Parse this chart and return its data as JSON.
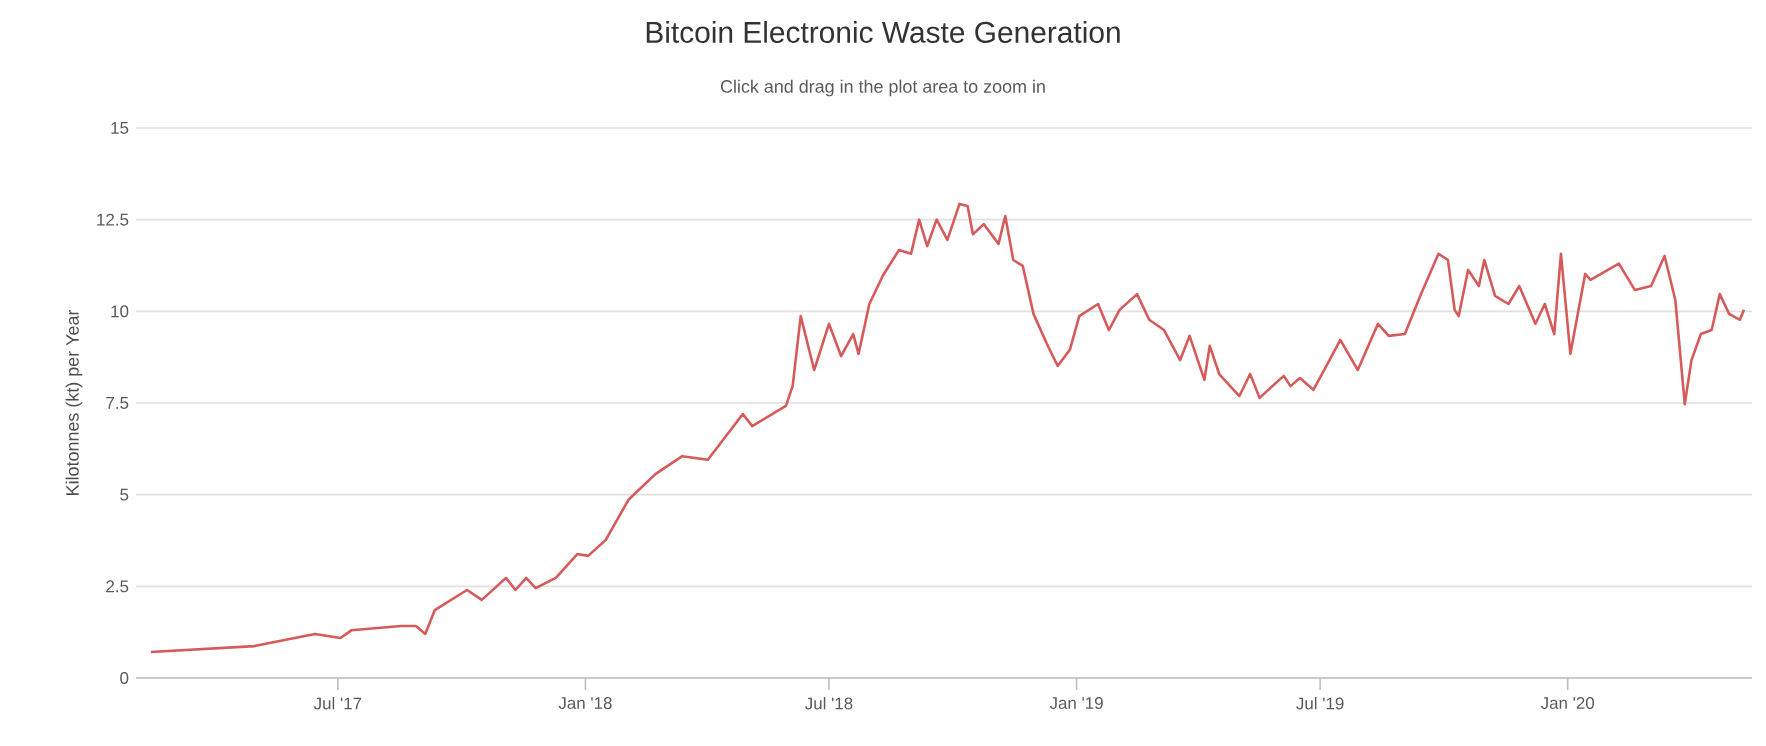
{
  "chart_data": {
    "type": "line",
    "title": "Bitcoin Electronic Waste Generation",
    "subtitle": "Click and drag in the plot area to zoom in",
    "ylabel": "Kilotonnes (kt) per Year",
    "xlim": [
      "2017-02-01",
      "2020-05-17"
    ],
    "xticks": [
      {
        "value": "2017-07-01",
        "label": "Jul '17"
      },
      {
        "value": "2018-01-01",
        "label": "Jan '18"
      },
      {
        "value": "2018-07-01",
        "label": "Jul '18"
      },
      {
        "value": "2019-01-01",
        "label": "Jan '19"
      },
      {
        "value": "2019-07-01",
        "label": "Jul '19"
      },
      {
        "value": "2020-01-01",
        "label": "Jan '20"
      }
    ],
    "ylim": [
      0,
      15
    ],
    "yticks": [
      0,
      2.5,
      5,
      7.5,
      10,
      12.5,
      15
    ],
    "grid": "y",
    "marker": "none",
    "line_style": "solid",
    "series": [
      {
        "color": "#d65a5a",
        "x": [
          "2017-02-12",
          "2017-04-30",
          "2017-06-14",
          "2017-07-03",
          "2017-07-11",
          "2017-08-17",
          "2017-08-28",
          "2017-09-04",
          "2017-09-11",
          "2017-10-05",
          "2017-10-16",
          "2017-11-03",
          "2017-11-10",
          "2017-11-18",
          "2017-11-25",
          "2017-12-10",
          "2017-12-26",
          "2018-01-03",
          "2018-01-16",
          "2018-02-02",
          "2018-02-22",
          "2018-03-14",
          "2018-04-02",
          "2018-04-28",
          "2018-05-05",
          "2018-05-30",
          "2018-06-04",
          "2018-06-10",
          "2018-06-20",
          "2018-07-01",
          "2018-07-10",
          "2018-07-19",
          "2018-07-23",
          "2018-07-31",
          "2018-08-10",
          "2018-08-22",
          "2018-08-31",
          "2018-09-06",
          "2018-09-12",
          "2018-09-19",
          "2018-09-27",
          "2018-10-06",
          "2018-10-12",
          "2018-10-16",
          "2018-10-24",
          "2018-11-04",
          "2018-11-09",
          "2018-11-15",
          "2018-11-22",
          "2018-11-30",
          "2018-12-10",
          "2018-12-18",
          "2018-12-27",
          "2019-01-03",
          "2019-01-17",
          "2019-01-25",
          "2019-02-02",
          "2019-02-15",
          "2019-02-24",
          "2019-03-07",
          "2019-03-19",
          "2019-03-26",
          "2019-04-06",
          "2019-04-10",
          "2019-04-17",
          "2019-05-02",
          "2019-05-10",
          "2019-05-17",
          "2019-06-04",
          "2019-06-09",
          "2019-06-16",
          "2019-06-26",
          "2019-07-08",
          "2019-07-16",
          "2019-07-29",
          "2019-08-13",
          "2019-08-21",
          "2019-09-02",
          "2019-09-14",
          "2019-09-27",
          "2019-10-04",
          "2019-10-09",
          "2019-10-12",
          "2019-10-19",
          "2019-10-27",
          "2019-10-31",
          "2019-11-08",
          "2019-11-18",
          "2019-11-26",
          "2019-12-08",
          "2019-12-15",
          "2019-12-22",
          "2019-12-27",
          "2020-01-03",
          "2020-01-14",
          "2020-01-18",
          "2020-02-08",
          "2020-02-20",
          "2020-03-03",
          "2020-03-13",
          "2020-03-21",
          "2020-03-28",
          "2020-04-02",
          "2020-04-09",
          "2020-04-17",
          "2020-04-23",
          "2020-04-30",
          "2020-05-08",
          "2020-05-11"
        ],
        "values": [
          0.71,
          0.87,
          1.2,
          1.09,
          1.3,
          1.42,
          1.42,
          1.2,
          1.85,
          2.4,
          2.13,
          2.73,
          2.4,
          2.73,
          2.45,
          2.73,
          3.38,
          3.33,
          3.76,
          4.86,
          5.56,
          6.05,
          5.95,
          7.2,
          6.87,
          7.42,
          7.96,
          9.87,
          8.4,
          9.66,
          8.78,
          9.38,
          8.84,
          10.2,
          10.97,
          11.67,
          11.57,
          12.5,
          11.78,
          12.5,
          11.95,
          12.93,
          12.87,
          12.1,
          12.38,
          11.84,
          12.6,
          11.4,
          11.24,
          9.93,
          9.11,
          8.51,
          8.95,
          9.87,
          10.2,
          9.49,
          10.04,
          10.47,
          9.77,
          9.49,
          8.67,
          9.33,
          8.13,
          9.06,
          8.29,
          7.69,
          8.29,
          7.64,
          8.24,
          7.96,
          8.18,
          7.86,
          8.67,
          9.22,
          8.4,
          9.66,
          9.33,
          9.38,
          10.47,
          11.57,
          11.4,
          10.04,
          9.87,
          11.13,
          10.69,
          11.4,
          10.42,
          10.2,
          10.69,
          9.66,
          10.2,
          9.38,
          11.57,
          8.84,
          11.02,
          10.86,
          11.3,
          10.58,
          10.69,
          11.51,
          10.31,
          7.47,
          8.67,
          9.38,
          9.49,
          10.47,
          9.93,
          9.77,
          10.04
        ]
      }
    ]
  }
}
